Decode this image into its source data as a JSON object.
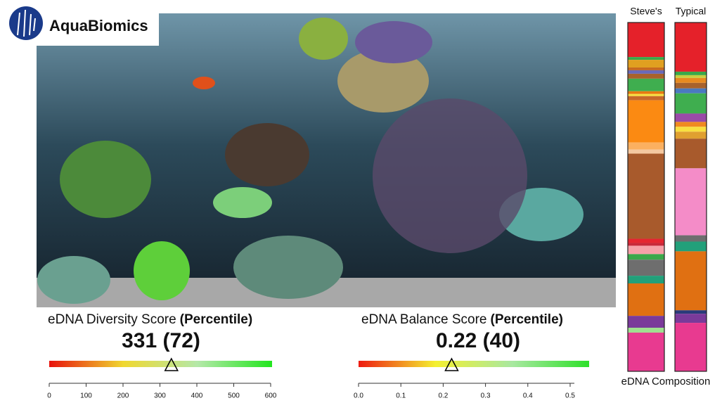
{
  "header": {
    "brand": "AquaBiomics"
  },
  "chart_data": [
    {
      "type": "gauge",
      "title": "eDNA Diversity Score",
      "title_suffix": "(Percentile)",
      "values": [
        331
      ],
      "value_labels": [
        "331 (72)"
      ],
      "colors": [
        "#e8120c",
        "#f0d830",
        "#b4e8a8",
        "#22e61e"
      ],
      "xlim": [
        0,
        600
      ],
      "xticks": [
        0,
        100,
        200,
        300,
        400,
        500,
        600
      ]
    },
    {
      "type": "gauge",
      "title": "eDNA Balance Score",
      "title_suffix": "(Percentile)",
      "values": [
        0.22
      ],
      "value_labels": [
        "0.22 (40)"
      ],
      "colors": [
        "#ee1a10",
        "#f4f030",
        "#a8e8a0",
        "#2ee02a"
      ],
      "xlim": [
        0,
        0.51
      ],
      "xticks": [
        {
          "value": 0,
          "label": "0.0"
        },
        0.1,
        0.2,
        0.3,
        0.4,
        0.5
      ]
    },
    {
      "type": "stacked-bar",
      "xlabel": "eDNA Composition",
      "ylim": [
        0,
        100
      ],
      "bars": [
        {
          "label": "Steve's",
          "segments": [
            {
              "color": "#e5212a",
              "value": 9.9
            },
            {
              "color": "#3aa84a",
              "value": 0.8
            },
            {
              "color": "#e0a020",
              "value": 2.2
            },
            {
              "color": "#c86a20",
              "value": 0.8
            },
            {
              "color": "#6a6ab8",
              "value": 1.0
            },
            {
              "color": "#a8622c",
              "value": 1.4
            },
            {
              "color": "#3fae4f",
              "value": 3.6
            },
            {
              "color": "#e87a10",
              "value": 0.8
            },
            {
              "color": "#f8e040",
              "value": 0.6
            },
            {
              "color": "#c8682a",
              "value": 1.2
            },
            {
              "color": "#fb8a12",
              "value": 12.1
            },
            {
              "color": "#fbb060",
              "value": 2.0
            },
            {
              "color": "#f4c8a0",
              "value": 1.2
            },
            {
              "color": "#a85a2c",
              "value": 24.4
            },
            {
              "color": "#e52530",
              "value": 1.2
            },
            {
              "color": "#c8283a",
              "value": 0.8
            },
            {
              "color": "#f6a0a8",
              "value": 2.4
            },
            {
              "color": "#3aa84a",
              "value": 1.6
            },
            {
              "color": "#6e6e6e",
              "value": 4.6
            },
            {
              "color": "#22a07a",
              "value": 2.2
            },
            {
              "color": "#e07012",
              "value": 9.3
            },
            {
              "color": "#7a3a9a",
              "value": 3.4
            },
            {
              "color": "#a0e090",
              "value": 1.4
            },
            {
              "color": "#e83a90",
              "value": 11.1
            }
          ]
        },
        {
          "label": "Typical",
          "segments": [
            {
              "color": "#e5212a",
              "value": 14.1
            },
            {
              "color": "#3aa84a",
              "value": 1.0
            },
            {
              "color": "#c8d040",
              "value": 0.8
            },
            {
              "color": "#e88a20",
              "value": 1.4
            },
            {
              "color": "#a8622c",
              "value": 1.6
            },
            {
              "color": "#4a7ac0",
              "value": 1.4
            },
            {
              "color": "#3fae4f",
              "value": 5.8
            },
            {
              "color": "#9a4aa8",
              "value": 2.4
            },
            {
              "color": "#f08a20",
              "value": 1.4
            },
            {
              "color": "#f8e040",
              "value": 1.4
            },
            {
              "color": "#e0a030",
              "value": 2.0
            },
            {
              "color": "#a85a2c",
              "value": 8.5
            },
            {
              "color": "#f48cc8",
              "value": 19.2
            },
            {
              "color": "#6e6e6e",
              "value": 1.8
            },
            {
              "color": "#22a07a",
              "value": 2.8
            },
            {
              "color": "#e07012",
              "value": 16.9
            },
            {
              "color": "#2a3a7a",
              "value": 1.0
            },
            {
              "color": "#7a3a9a",
              "value": 2.6
            },
            {
              "color": "#e83a90",
              "value": 13.9
            }
          ]
        }
      ]
    }
  ]
}
